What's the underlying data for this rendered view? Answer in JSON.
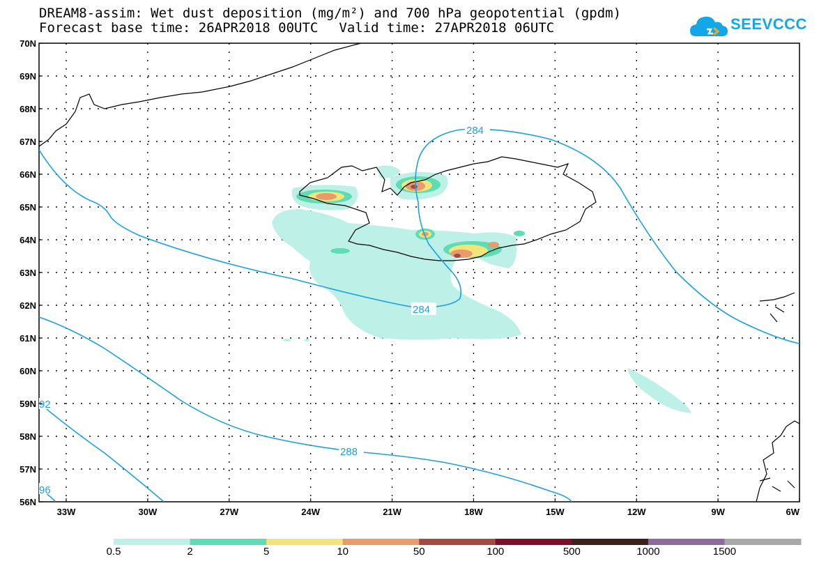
{
  "title": {
    "line1": "DREAM8-assim: Wet dust deposition (mg/m²) and 700 hPa geopotential (gpdm)",
    "base_label": "Forecast base time: 26APR2018 00UTC",
    "valid_label": "Valid time: 27APR2018 06UTC"
  },
  "logo": {
    "text": "SEEVCCC"
  },
  "map": {
    "lat_labels": [
      "70N",
      "69N",
      "68N",
      "67N",
      "66N",
      "65N",
      "64N",
      "63N",
      "62N",
      "61N",
      "60N",
      "59N",
      "58N",
      "57N",
      "56N"
    ],
    "lon_labels": [
      "33W",
      "30W",
      "27W",
      "24W",
      "21W",
      "18W",
      "15W",
      "12W",
      "9W",
      "6W"
    ],
    "contour_labels": [
      "284",
      "284",
      "288",
      "92",
      "96"
    ]
  },
  "colorbar": {
    "labels": [
      "0.5",
      "2",
      "5",
      "10",
      "50",
      "100",
      "500",
      "1000",
      "1500"
    ],
    "colors": [
      "#bdf0e6",
      "#5edcb4",
      "#f4e57a",
      "#e89b6d",
      "#a54a42",
      "#7e0e2b",
      "#372319",
      "#8d6b9a",
      "#a8a8a8"
    ]
  }
}
